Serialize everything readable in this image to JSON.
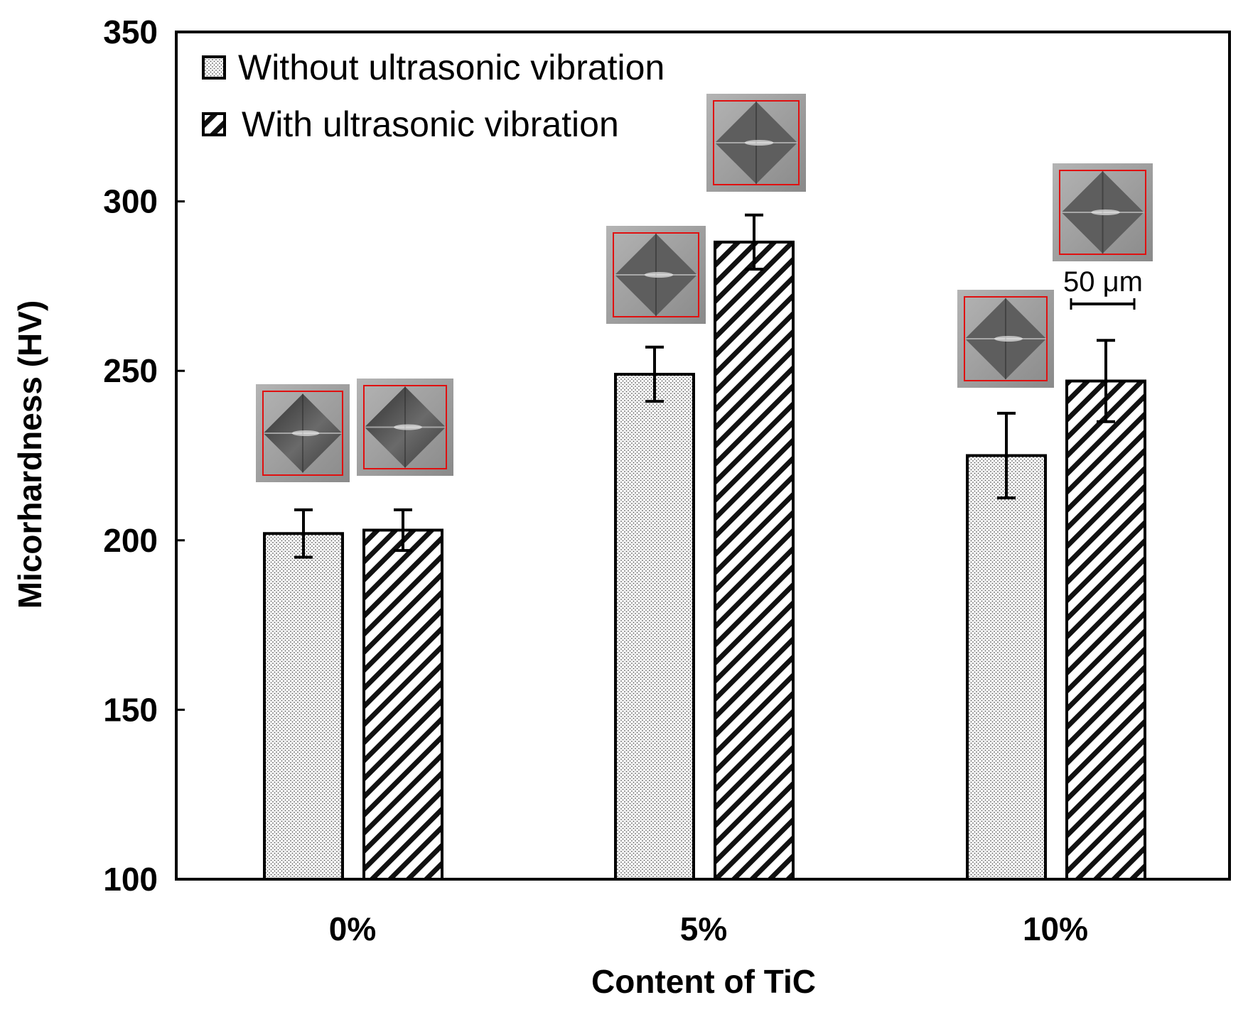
{
  "chart_data": {
    "type": "bar",
    "title": "",
    "xlabel": "Content of TiC",
    "ylabel": "Micorhardness (HV)",
    "ylim": [
      100,
      350
    ],
    "yticks": [
      100,
      150,
      200,
      250,
      300,
      350
    ],
    "categories": [
      "0%",
      "5%",
      "10%"
    ],
    "grid": false,
    "legend_position": "top-left",
    "series": [
      {
        "name": "Without ultrasonic vibration",
        "pattern": "dots",
        "values": [
          202,
          249,
          225
        ],
        "errors": [
          7,
          8,
          12.5
        ]
      },
      {
        "name": "With ultrasonic vibration",
        "pattern": "hatch",
        "values": [
          203,
          288,
          247
        ],
        "errors": [
          6,
          8,
          12
        ]
      }
    ],
    "annotations": {
      "scale_bar_label": "50 μm",
      "inset_images": "microhardness indentation micrographs above each bar"
    }
  },
  "colors": {
    "bar_fill": "#ffffff",
    "dot_pattern": "#555555",
    "hatch": "#111111",
    "inset_frame": "#e01010",
    "inset_bg": "#9a9a9a"
  }
}
